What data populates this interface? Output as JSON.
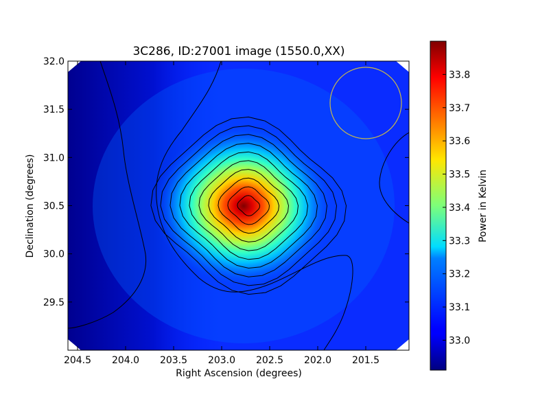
{
  "chart_data": {
    "type": "heatmap",
    "title": "3C286, ID:27001 image (1550.0,XX)",
    "xlabel": "Right Ascension (degrees)",
    "ylabel": "Declination (degrees)",
    "xlim": [
      204.6,
      201.05
    ],
    "ylim": [
      29.0,
      32.0
    ],
    "x_ticks": [
      204.5,
      204.0,
      203.5,
      203.0,
      202.5,
      202.0,
      201.5
    ],
    "x_tick_labels": [
      "204.5",
      "204.0",
      "203.5",
      "203.0",
      "202.5",
      "202.0",
      "201.5"
    ],
    "y_ticks": [
      29.5,
      30.0,
      30.5,
      31.0,
      31.5,
      32.0
    ],
    "y_tick_labels": [
      "29.5",
      "30.0",
      "30.5",
      "31.0",
      "31.5",
      "32.0"
    ],
    "colorbar": {
      "label": "Power in Kelvin",
      "vmin": 32.91,
      "vmax": 33.9,
      "ticks": [
        33.0,
        33.1,
        33.2,
        33.3,
        33.4,
        33.5,
        33.6,
        33.7,
        33.8
      ],
      "tick_labels": [
        "33.0",
        "33.1",
        "33.2",
        "33.3",
        "33.4",
        "33.5",
        "33.6",
        "33.7",
        "33.8"
      ],
      "colormap": "jet"
    },
    "peak": {
      "ra": 202.72,
      "dec": 30.5,
      "value": 33.89
    },
    "contour_count": 11,
    "beam_circle": {
      "ra": 201.5,
      "dec": 31.57,
      "color": "#c8b84a"
    },
    "grid": false
  }
}
